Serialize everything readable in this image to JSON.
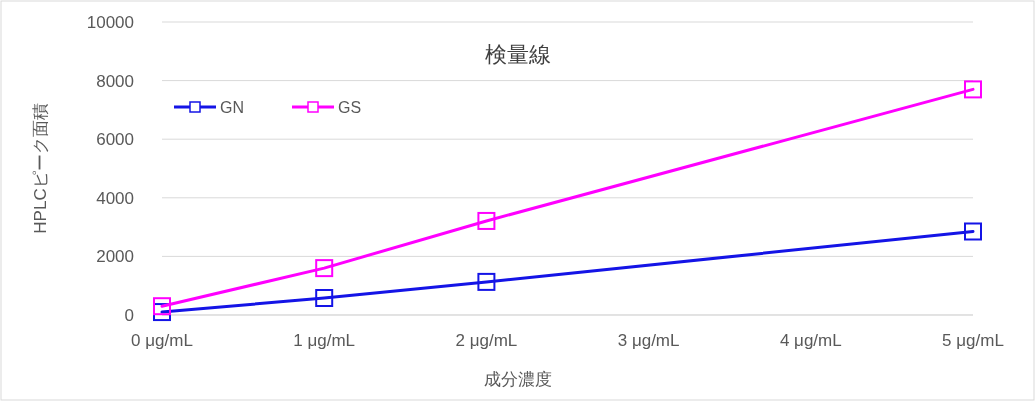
{
  "chart_data": {
    "type": "line",
    "title": "検量線",
    "xlabel": "成分濃度",
    "ylabel": "HPLCピーク面積",
    "x": [
      0,
      1,
      2,
      5
    ],
    "series": [
      {
        "name": "GN",
        "color": "#1414e6",
        "values": [
          100,
          580,
          1130,
          2850
        ]
      },
      {
        "name": "GS",
        "color": "#ff00ff",
        "values": [
          300,
          1600,
          3210,
          7700
        ]
      }
    ],
    "xlim": [
      0,
      5
    ],
    "xticks": [
      {
        "value": 0,
        "label": "0 μg/mL"
      },
      {
        "value": 1,
        "label": "1 μg/mL"
      },
      {
        "value": 2,
        "label": "2 μg/mL"
      },
      {
        "value": 3,
        "label": "3 μg/mL"
      },
      {
        "value": 4,
        "label": "4 μg/mL"
      },
      {
        "value": 5,
        "label": "5 μg/mL"
      }
    ],
    "ylim": [
      0,
      10000
    ],
    "yticks": [
      0,
      2000,
      4000,
      6000,
      8000,
      10000
    ],
    "grid": "y",
    "legend": "top left",
    "marker": "square",
    "line_style": "solid"
  }
}
